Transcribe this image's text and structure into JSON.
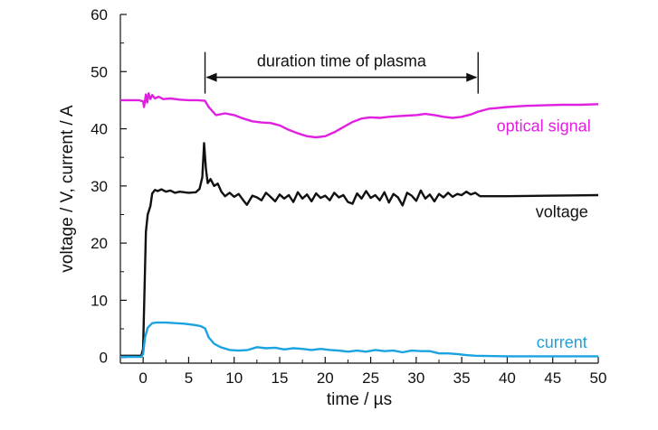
{
  "chart_data": {
    "type": "line",
    "xlabel": "time / µs",
    "ylabel": "voltage / V, current / A",
    "xlim": [
      -2.5,
      50
    ],
    "ylim": [
      -1,
      60
    ],
    "x_ticks": [
      0,
      5,
      10,
      15,
      20,
      25,
      30,
      35,
      40,
      45,
      50
    ],
    "y_ticks": [
      0,
      10,
      20,
      30,
      40,
      50,
      60
    ],
    "grid": false,
    "annotation": {
      "text": "duration time of plasma",
      "x_start": 6.8,
      "x_end": 36.8,
      "y": 49
    },
    "series": [
      {
        "name": "optical signal",
        "color": "#e020e0",
        "label_position": [
          44.0,
          39.5
        ],
        "points": [
          [
            -2.5,
            45.0
          ],
          [
            -0.5,
            45.0
          ],
          [
            0,
            44.8
          ],
          [
            0.1,
            43.8
          ],
          [
            0.2,
            44.9
          ],
          [
            0.3,
            46.0
          ],
          [
            0.45,
            44.6
          ],
          [
            0.6,
            46.2
          ],
          [
            0.8,
            45.2
          ],
          [
            1.0,
            45.9
          ],
          [
            1.3,
            45.3
          ],
          [
            1.7,
            45.6
          ],
          [
            2.2,
            45.2
          ],
          [
            3,
            45.3
          ],
          [
            4,
            45.1
          ],
          [
            5,
            45.0
          ],
          [
            6,
            45.0
          ],
          [
            6.8,
            44.9
          ],
          [
            7.2,
            43.8
          ],
          [
            8,
            42.4
          ],
          [
            9,
            42.7
          ],
          [
            10,
            42.4
          ],
          [
            11,
            41.8
          ],
          [
            12,
            41.3
          ],
          [
            13,
            41.1
          ],
          [
            14,
            41.0
          ],
          [
            15,
            40.6
          ],
          [
            16,
            39.8
          ],
          [
            17,
            39.2
          ],
          [
            18,
            38.7
          ],
          [
            19,
            38.5
          ],
          [
            20,
            38.7
          ],
          [
            21,
            39.4
          ],
          [
            22,
            40.3
          ],
          [
            23,
            41.2
          ],
          [
            24,
            41.8
          ],
          [
            25,
            42.0
          ],
          [
            26,
            41.9
          ],
          [
            27,
            42.1
          ],
          [
            28,
            42.2
          ],
          [
            29,
            42.3
          ],
          [
            30,
            42.4
          ],
          [
            31,
            42.6
          ],
          [
            32,
            42.4
          ],
          [
            33,
            42.1
          ],
          [
            34,
            41.9
          ],
          [
            35,
            42.1
          ],
          [
            36,
            42.5
          ],
          [
            36.8,
            43.0
          ],
          [
            38,
            43.5
          ],
          [
            40,
            43.8
          ],
          [
            42,
            44.0
          ],
          [
            44,
            44.1
          ],
          [
            46,
            44.2
          ],
          [
            48,
            44.2
          ],
          [
            50,
            44.3
          ]
        ]
      },
      {
        "name": "voltage",
        "color": "#111111",
        "label_position": [
          46.0,
          24.5
        ],
        "points": [
          [
            -2.5,
            0.3
          ],
          [
            -0.2,
            0.3
          ],
          [
            0,
            1.5
          ],
          [
            0.15,
            12
          ],
          [
            0.3,
            22
          ],
          [
            0.5,
            25
          ],
          [
            0.8,
            26.5
          ],
          [
            1.0,
            28.7
          ],
          [
            1.3,
            29.3
          ],
          [
            1.6,
            29.1
          ],
          [
            2.0,
            29.4
          ],
          [
            2.5,
            29.0
          ],
          [
            3,
            29.2
          ],
          [
            3.5,
            28.8
          ],
          [
            4,
            29.0
          ],
          [
            5,
            28.8
          ],
          [
            5.8,
            28.9
          ],
          [
            6.2,
            29.5
          ],
          [
            6.5,
            31.5
          ],
          [
            6.7,
            37.5
          ],
          [
            6.9,
            33
          ],
          [
            7.1,
            30.5
          ],
          [
            7.4,
            31.2
          ],
          [
            7.8,
            30
          ],
          [
            8.2,
            30.4
          ],
          [
            8.6,
            29
          ],
          [
            9,
            28.2
          ],
          [
            9.5,
            28.8
          ],
          [
            10,
            28.1
          ],
          [
            10.5,
            28.6
          ],
          [
            11,
            27.5
          ],
          [
            11.4,
            26.7
          ],
          [
            12,
            28.3
          ],
          [
            12.5,
            28.0
          ],
          [
            13,
            27.5
          ],
          [
            13.5,
            28.8
          ],
          [
            14,
            28.1
          ],
          [
            14.5,
            27.3
          ],
          [
            15,
            28.5
          ],
          [
            15.5,
            27.8
          ],
          [
            16,
            28.4
          ],
          [
            16.5,
            27.2
          ],
          [
            17,
            28.9
          ],
          [
            17.5,
            27.8
          ],
          [
            18,
            28.5
          ],
          [
            18.5,
            27.3
          ],
          [
            19,
            28.7
          ],
          [
            19.5,
            27.9
          ],
          [
            20,
            28.3
          ],
          [
            20.5,
            27.5
          ],
          [
            21,
            28.8
          ],
          [
            21.5,
            28.0
          ],
          [
            22,
            28.4
          ],
          [
            22.5,
            27.2
          ],
          [
            23,
            26.9
          ],
          [
            23.5,
            28.7
          ],
          [
            24,
            27.8
          ],
          [
            24.5,
            29.1
          ],
          [
            25,
            27.9
          ],
          [
            25.5,
            28.4
          ],
          [
            26,
            27.5
          ],
          [
            26.5,
            28.9
          ],
          [
            27,
            27.1
          ],
          [
            27.5,
            28.6
          ],
          [
            28,
            28.0
          ],
          [
            28.5,
            26.6
          ],
          [
            29,
            28.8
          ],
          [
            29.5,
            28.3
          ],
          [
            30,
            27.4
          ],
          [
            30.5,
            29.2
          ],
          [
            31,
            27.8
          ],
          [
            31.5,
            28.5
          ],
          [
            32,
            27.3
          ],
          [
            32.5,
            28.6
          ],
          [
            33,
            28.0
          ],
          [
            33.5,
            28.8
          ],
          [
            34,
            28.1
          ],
          [
            34.5,
            28.6
          ],
          [
            35,
            28.4
          ],
          [
            35.5,
            29.0
          ],
          [
            36,
            28.5
          ],
          [
            36.5,
            28.8
          ],
          [
            37,
            28.2
          ],
          [
            40,
            28.2
          ],
          [
            45,
            28.3
          ],
          [
            50,
            28.4
          ]
        ]
      },
      {
        "name": "current",
        "color": "#1aa3e0",
        "label_position": [
          46.0,
          1.7
        ],
        "points": [
          [
            -2.5,
            0.1
          ],
          [
            -0.2,
            0.1
          ],
          [
            0,
            0.6
          ],
          [
            0.2,
            3.5
          ],
          [
            0.5,
            5.2
          ],
          [
            1,
            6.0
          ],
          [
            1.5,
            6.1
          ],
          [
            2.5,
            6.1
          ],
          [
            3.5,
            6.0
          ],
          [
            4.5,
            5.9
          ],
          [
            5.5,
            5.7
          ],
          [
            6.3,
            5.5
          ],
          [
            6.8,
            5.1
          ],
          [
            7.2,
            3.5
          ],
          [
            7.8,
            2.4
          ],
          [
            8.5,
            1.8
          ],
          [
            9.5,
            1.3
          ],
          [
            10.5,
            1.2
          ],
          [
            11.5,
            1.3
          ],
          [
            12.5,
            1.8
          ],
          [
            13.5,
            1.6
          ],
          [
            14.5,
            1.7
          ],
          [
            15.5,
            1.4
          ],
          [
            16.5,
            1.6
          ],
          [
            17.5,
            1.5
          ],
          [
            18.5,
            1.3
          ],
          [
            19.5,
            1.5
          ],
          [
            20.5,
            1.3
          ],
          [
            21.5,
            1.2
          ],
          [
            22.5,
            1.0
          ],
          [
            23.5,
            1.2
          ],
          [
            24.5,
            1.0
          ],
          [
            25.5,
            1.3
          ],
          [
            26.5,
            1.1
          ],
          [
            27.5,
            1.2
          ],
          [
            28.5,
            0.9
          ],
          [
            29.5,
            1.2
          ],
          [
            30.5,
            1.1
          ],
          [
            31.5,
            1.1
          ],
          [
            32.5,
            0.7
          ],
          [
            33.5,
            0.7
          ],
          [
            34.5,
            0.6
          ],
          [
            35.5,
            0.4
          ],
          [
            36.5,
            0.3
          ],
          [
            40,
            0.2
          ],
          [
            45,
            0.2
          ],
          [
            50,
            0.2
          ]
        ]
      }
    ]
  }
}
